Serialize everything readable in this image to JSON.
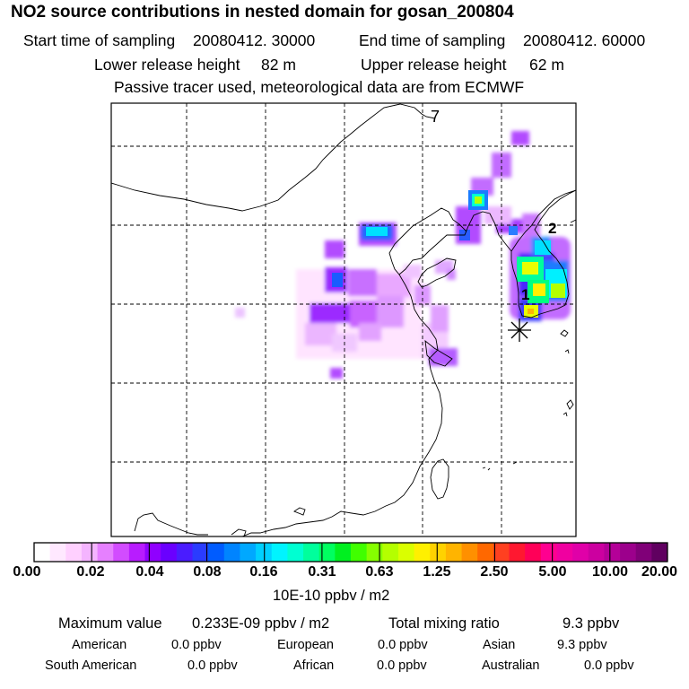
{
  "header": {
    "title": "NO2 source contributions in nested domain for gosan_200804",
    "start_label": "Start time of sampling",
    "start_value": "20080412. 30000",
    "end_label": "End time of sampling",
    "end_value": "20080412. 60000",
    "lower_label": "Lower release height",
    "lower_value": "82 m",
    "upper_label": "Upper release height",
    "upper_value": "62 m",
    "note": "Passive tracer used, meteorological data are from ECMWF"
  },
  "map": {
    "labels": {
      "seven": "7",
      "two": "2",
      "one": "1"
    },
    "colors": {
      "land_outline": "#000000",
      "grid": "#000000",
      "receptor": "#000000"
    }
  },
  "colorbar": {
    "ticks": [
      "0.00",
      "0.02",
      "0.04",
      "0.08",
      "0.16",
      "0.31",
      "0.63",
      "1.25",
      "2.50",
      "5.00",
      "10.00",
      "20.00"
    ],
    "unit": "10E-10 ppbv / m2",
    "colors": [
      "#ffffff",
      "#ffe8ff",
      "#ffd0ff",
      "#f4b4ff",
      "#e680ff",
      "#d24cff",
      "#b81cff",
      "#9000ff",
      "#6a00ff",
      "#4a1cff",
      "#2a3cff",
      "#005cff",
      "#0084ff",
      "#00a8ff",
      "#00d0ff",
      "#00f4ff",
      "#00ffd2",
      "#00ff9c",
      "#00ff60",
      "#00f020",
      "#40ff00",
      "#86ff00",
      "#b4ff00",
      "#daff00",
      "#fff000",
      "#ffd200",
      "#ffb400",
      "#ff9000",
      "#ff6800",
      "#ff4020",
      "#ff1830",
      "#ff0058",
      "#ff0090",
      "#f000a0",
      "#e000a8",
      "#cc00a0",
      "#b40098",
      "#9c008c",
      "#800078",
      "#600060"
    ]
  },
  "stats": {
    "max_label": "Maximum value",
    "max_value": "0.233E-09 ppbv / m2",
    "total_label": "Total mixing ratio",
    "total_value": "9.3 ppbv",
    "sources": [
      {
        "name": "American",
        "value": "0.0 ppbv"
      },
      {
        "name": "European",
        "value": "0.0 ppbv"
      },
      {
        "name": "Asian",
        "value": "9.3 ppbv"
      },
      {
        "name": "South American",
        "value": "0.0 ppbv"
      },
      {
        "name": "African",
        "value": "0.0 ppbv"
      },
      {
        "name": "Australian",
        "value": "0.0 ppbv"
      }
    ]
  }
}
